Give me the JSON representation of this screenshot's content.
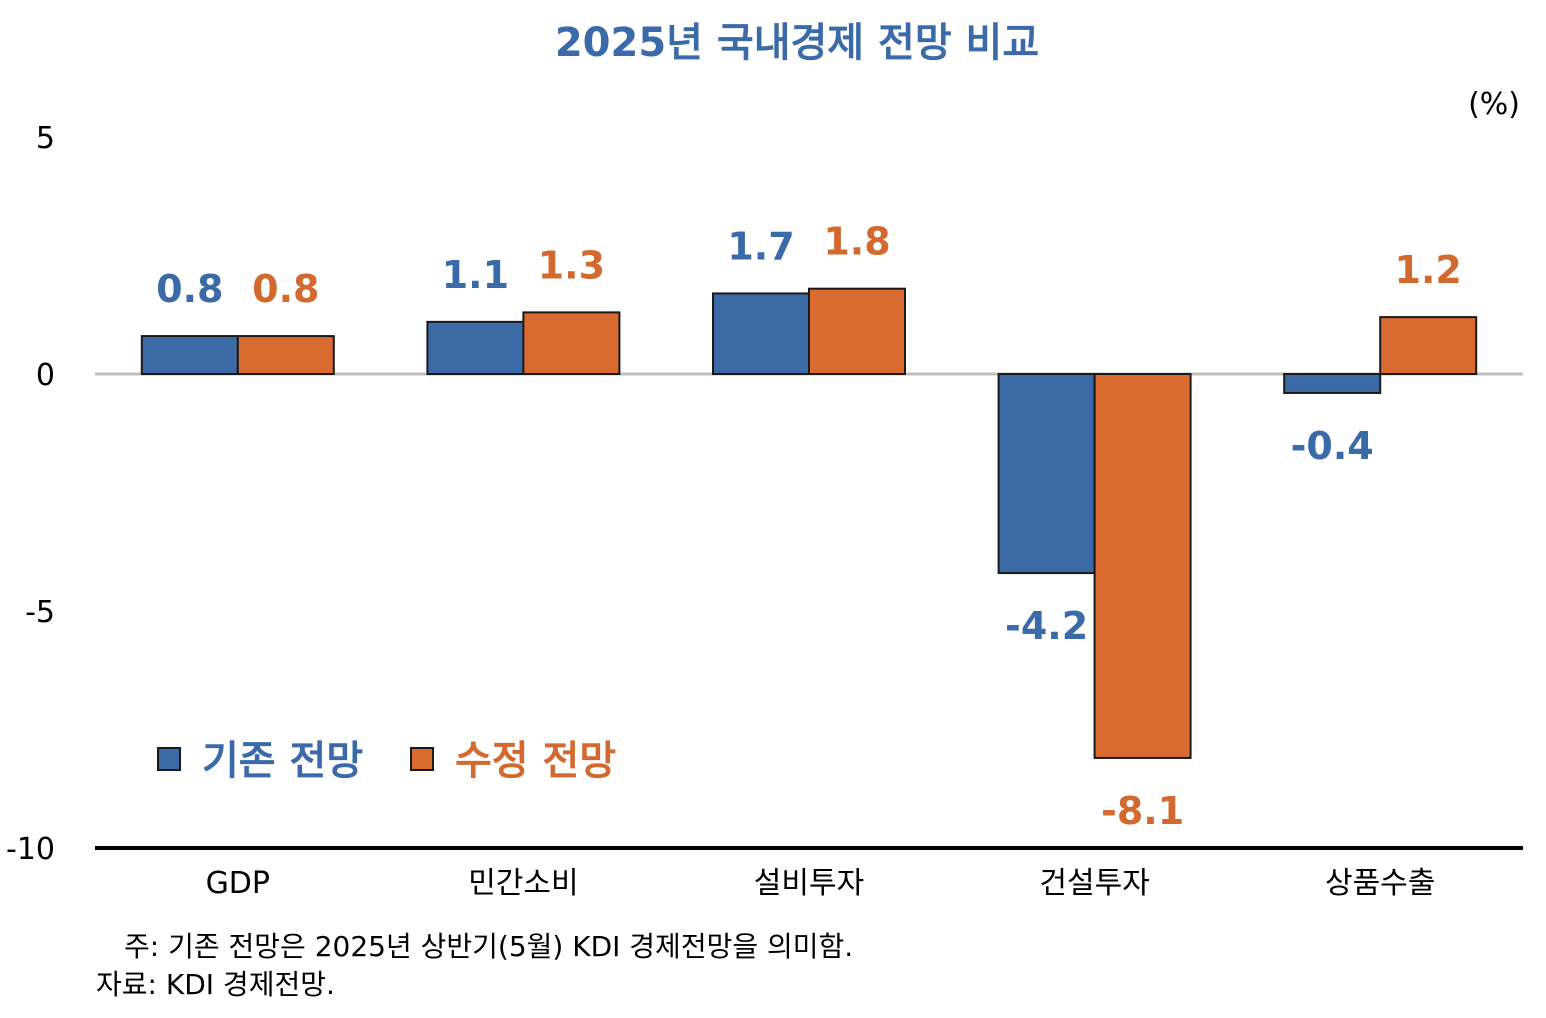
{
  "chart_data": {
    "type": "bar",
    "title": "2025년 국내경제 전망 비교",
    "unit": "(%)",
    "categories": [
      "GDP",
      "민간소비",
      "설비투자",
      "건설투자",
      "상품수출"
    ],
    "series": [
      {
        "name": "기존 전망",
        "color": "#3c6aa7",
        "label_color": "#3a6aa8",
        "values": [
          0.8,
          1.1,
          1.7,
          -4.2,
          -0.4
        ],
        "labels": [
          "0.8",
          "1.1",
          "1.7",
          "-4.2",
          "-0.4"
        ]
      },
      {
        "name": "수정 전망",
        "color": "#d96b30",
        "label_color": "#d2692e",
        "values": [
          0.8,
          1.3,
          1.8,
          -8.1,
          1.2
        ],
        "labels": [
          "0.8",
          "1.3",
          "1.8",
          "-8.1",
          "1.2"
        ]
      }
    ],
    "yticks": [
      5,
      0,
      -5,
      -10
    ],
    "ytick_labels": [
      "5",
      "0",
      "-5",
      "-10"
    ],
    "ylim": [
      -10,
      5
    ],
    "grid": false,
    "legend_position": "bottom-left"
  },
  "notes": {
    "note1": "주: 기존 전망은 2025년 상반기(5월) KDI 경제전망을 의미함.",
    "note2": "자료: KDI 경제전망."
  }
}
